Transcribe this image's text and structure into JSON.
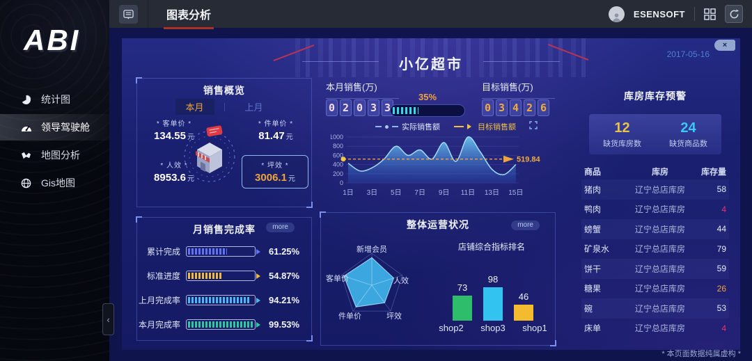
{
  "sidebar": {
    "logo": "ABI",
    "collapse": "‹",
    "items": [
      {
        "label": "统计图",
        "icon": "pie-chart-icon",
        "active": false
      },
      {
        "label": "领导驾驶舱",
        "icon": "dashboard-icon",
        "active": true
      },
      {
        "label": "地图分析",
        "icon": "map-icon",
        "active": false
      },
      {
        "label": "Gis地图",
        "icon": "globe-icon",
        "active": false
      }
    ]
  },
  "topbar": {
    "title": "图表分析",
    "username": "ESENSOFT"
  },
  "screen": {
    "title": "小亿超市",
    "date": "2017-05-16",
    "close": "×",
    "footer": "* 本页面数据纯属虚构 *"
  },
  "sales_overview": {
    "title": "销售概览",
    "tabs": [
      {
        "label": "本月",
        "active": true
      },
      {
        "label": "上月",
        "active": false
      }
    ],
    "stats": [
      {
        "label": "* 客单价 *",
        "value": "134.55",
        "unit": "元",
        "highlight": false
      },
      {
        "label": "* 件单价 *",
        "value": "81.47",
        "unit": "元",
        "highlight": false
      },
      {
        "label": "* 人效 *",
        "value": "8953.6",
        "unit": "元",
        "highlight": false
      },
      {
        "label": "* 坪效 *",
        "value": "3006.1",
        "unit": "元",
        "highlight": true
      }
    ]
  },
  "monthly_sales": {
    "label": "本月销售(万)",
    "digits": "02033",
    "percent": 35,
    "percent_label": "35%",
    "target_label": "目标销售(万)",
    "target_digits": "03426"
  },
  "completion": {
    "title": "月销售完成率",
    "more": "more"
  },
  "operation": {
    "title": "整体运营状况",
    "more": "more",
    "ranking_title": "店铺综合指标排名"
  },
  "warehouse": {
    "title": "库房库存预警",
    "summary": [
      {
        "value": "12",
        "label": "缺货库房数",
        "color": "#e8c34a"
      },
      {
        "value": "24",
        "label": "缺货商品数",
        "color": "#3ac8f5"
      }
    ],
    "columns": [
      "商品",
      "库房",
      "库存量"
    ],
    "rows": [
      {
        "name": "猪肉",
        "depot": "辽宁总店库房",
        "qty": "58",
        "qty_color": "#e6ecfa"
      },
      {
        "name": "鸭肉",
        "depot": "辽宁总店库房",
        "qty": "4",
        "qty_color": "#e8346a"
      },
      {
        "name": "螃蟹",
        "depot": "辽宁总店库房",
        "qty": "44",
        "qty_color": "#e6ecfa"
      },
      {
        "name": "矿泉水",
        "depot": "辽宁总店库房",
        "qty": "79",
        "qty_color": "#e6ecfa"
      },
      {
        "name": "饼干",
        "depot": "辽宁总店库房",
        "qty": "59",
        "qty_color": "#e6ecfa"
      },
      {
        "name": "糖果",
        "depot": "辽宁总店库房",
        "qty": "26",
        "qty_color": "#f0a43c"
      },
      {
        "name": "碗",
        "depot": "辽宁总店库房",
        "qty": "53",
        "qty_color": "#e6ecfa"
      },
      {
        "name": "床单",
        "depot": "辽宁总店库房",
        "qty": "4",
        "qty_color": "#e8346a"
      }
    ]
  },
  "chart_data": [
    {
      "id": "daily_sales",
      "type": "area",
      "legend": [
        {
          "label": "实际销售额"
        },
        {
          "label": "目标销售额"
        }
      ],
      "days": [
        1,
        2,
        3,
        4,
        5,
        6,
        7,
        8,
        9,
        10,
        11,
        12,
        13,
        14,
        15
      ],
      "values": [
        430,
        260,
        330,
        520,
        800,
        600,
        720,
        520,
        880,
        470,
        1000,
        690,
        300,
        180,
        400
      ],
      "x_labels": [
        "1日",
        "3日",
        "5日",
        "7日",
        "9日",
        "11日",
        "13日",
        "15日"
      ],
      "target_value": 519.84,
      "target_label": "519.84",
      "ylim": [
        0,
        1000
      ],
      "yticks": [
        0,
        200,
        400,
        600,
        800,
        1000
      ]
    },
    {
      "id": "operation_radar",
      "type": "radar",
      "max": 100,
      "categories": [
        "新增会员",
        "人效",
        "坪效",
        "件单价",
        "客单价"
      ],
      "values": [
        86,
        72,
        68,
        84,
        92
      ]
    },
    {
      "id": "shop_ranking",
      "type": "bar",
      "categories": [
        "shop2",
        "shop3",
        "shop1"
      ],
      "values": [
        73,
        98,
        46
      ],
      "colors": [
        "#2ebd6b",
        "#33c3f0",
        "#f5bb2e"
      ]
    },
    {
      "id": "completion_bars",
      "type": "progress",
      "rows": [
        {
          "label": "累计完成",
          "percent": 61.25,
          "display": "61.25%",
          "color": "#6272f2"
        },
        {
          "label": "标准进度",
          "percent": 54.87,
          "display": "54.87%",
          "color": "#f0b93c"
        },
        {
          "label": "上月完成率",
          "percent": 94.21,
          "display": "94.21%",
          "color": "#4db8f0"
        },
        {
          "label": "本月完成率",
          "percent": 99.53,
          "display": "99.53%",
          "color": "#2ec9a0"
        }
      ]
    }
  ]
}
